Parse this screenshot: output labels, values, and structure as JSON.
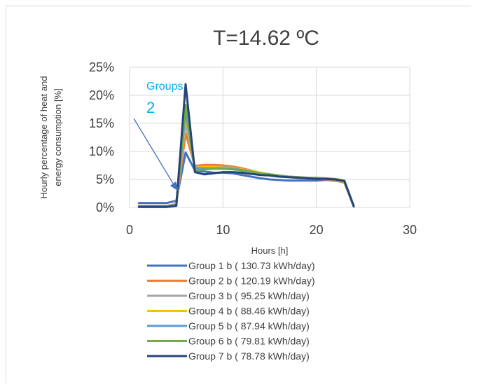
{
  "chart_data": {
    "type": "line",
    "title": "T=14.62 ºC",
    "xlabel": "Hours [h]",
    "ylabel_lines": [
      "Hourly percentage of heat and",
      "energy consumption [%]"
    ],
    "xlim": [
      0,
      30
    ],
    "ylim": [
      0,
      25
    ],
    "x_ticks": [
      0,
      10,
      20,
      30
    ],
    "y_ticks": [
      0,
      5,
      10,
      15,
      20,
      25
    ],
    "y_tick_labels": [
      "0%",
      "5%",
      "10%",
      "15%",
      "20%",
      "25%"
    ],
    "grid": true,
    "legend_position": "bottom",
    "annotation": {
      "line1": "Groups",
      "line2": "2",
      "color": "#00b0f0"
    },
    "x": [
      1,
      2,
      3,
      4,
      5,
      6,
      7,
      8,
      9,
      10,
      11,
      12,
      13,
      14,
      15,
      16,
      17,
      18,
      19,
      20,
      21,
      22,
      23,
      24
    ],
    "series": [
      {
        "name": "Group 1 b ( 130.73 kWh/day)",
        "color": "#4472c4",
        "values": [
          0.8,
          0.8,
          0.8,
          0.8,
          1.2,
          9.8,
          6.6,
          6.4,
          6.2,
          6.2,
          6.1,
          5.8,
          5.5,
          5.2,
          5.0,
          4.9,
          4.8,
          4.8,
          4.8,
          4.8,
          4.9,
          4.8,
          4.5,
          0.2
        ]
      },
      {
        "name": "Group 2 b ( 120.19 kWh/day)",
        "color": "#ed7d31",
        "values": [
          0.3,
          0.3,
          0.3,
          0.3,
          0.6,
          13.2,
          7.4,
          7.6,
          7.6,
          7.5,
          7.3,
          7.0,
          6.6,
          6.2,
          5.9,
          5.6,
          5.4,
          5.3,
          5.2,
          5.1,
          5.0,
          4.9,
          4.4,
          0.3
        ]
      },
      {
        "name": "Group 3 b ( 95.25 kWh/day)",
        "color": "#a5a5a5",
        "values": [
          0.2,
          0.2,
          0.2,
          0.2,
          0.5,
          15.0,
          7.2,
          7.3,
          7.3,
          7.2,
          7.1,
          6.8,
          6.5,
          6.2,
          5.9,
          5.7,
          5.5,
          5.4,
          5.3,
          5.2,
          5.1,
          5.0,
          4.5,
          0.3
        ]
      },
      {
        "name": "Group 4 b ( 88.46 kWh/day)",
        "color": "#ffc000",
        "values": [
          0.2,
          0.2,
          0.2,
          0.2,
          0.5,
          16.2,
          7.1,
          7.2,
          7.2,
          7.1,
          7.0,
          6.8,
          6.5,
          6.2,
          5.9,
          5.7,
          5.5,
          5.4,
          5.3,
          5.2,
          5.1,
          5.0,
          4.6,
          0.3
        ]
      },
      {
        "name": "Group 5 b ( 87.94 kWh/day)",
        "color": "#5b9bd5",
        "values": [
          0.2,
          0.2,
          0.2,
          0.2,
          0.5,
          17.0,
          7.0,
          7.0,
          7.0,
          7.0,
          6.9,
          6.7,
          6.4,
          6.1,
          5.9,
          5.7,
          5.5,
          5.4,
          5.3,
          5.2,
          5.1,
          5.0,
          4.7,
          0.3
        ]
      },
      {
        "name": "Group 6 b ( 79.81 kWh/day)",
        "color": "#70ad47",
        "values": [
          0.1,
          0.1,
          0.1,
          0.1,
          0.4,
          18.3,
          6.6,
          6.8,
          6.9,
          6.9,
          6.8,
          6.6,
          6.4,
          6.1,
          5.9,
          5.7,
          5.5,
          5.4,
          5.3,
          5.3,
          5.2,
          5.1,
          4.8,
          0.3
        ]
      },
      {
        "name": "Group 7 b ( 78.78 kWh/day)",
        "color": "#264478",
        "values": [
          0.1,
          0.1,
          0.1,
          0.1,
          0.3,
          22.0,
          6.3,
          5.9,
          6.1,
          6.3,
          6.3,
          6.2,
          6.0,
          5.8,
          5.7,
          5.5,
          5.4,
          5.3,
          5.2,
          5.1,
          5.1,
          5.0,
          4.7,
          0.2
        ]
      }
    ]
  }
}
